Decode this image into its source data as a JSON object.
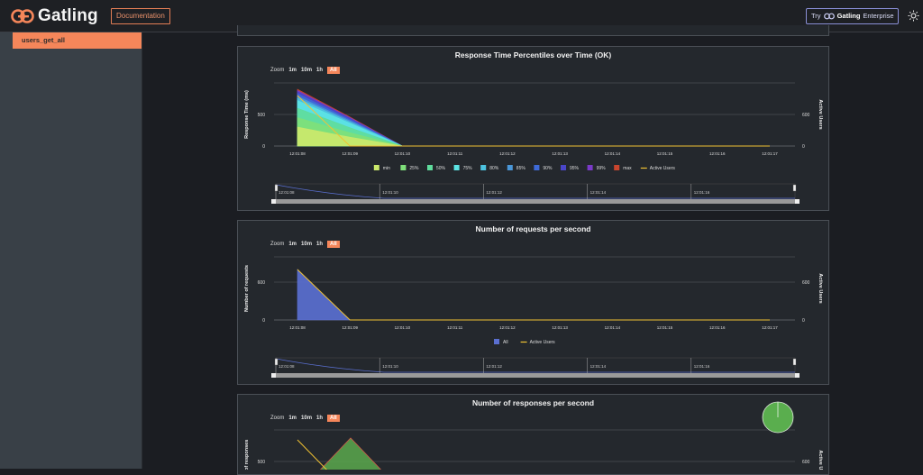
{
  "app": {
    "logo_text": "Gatling",
    "documentation_label": "Documentation",
    "enterprise_try": "Try",
    "enterprise_brand": "Gatling",
    "enterprise_label": "Enterprise"
  },
  "sidebar": {
    "items": [
      {
        "label": "users_get_all"
      }
    ]
  },
  "colors": {
    "accent": "#f5865a",
    "panel_bg": "#24282d",
    "page_bg": "#1b1d22",
    "sidebar_bg": "#394047",
    "active_users": "#f1c232"
  },
  "zoom": {
    "label": "Zoom",
    "options": [
      "1m",
      "10m",
      "1h",
      "All"
    ],
    "selected": "All"
  },
  "charts": [
    {
      "title": "Response Time Percentiles over Time (OK)",
      "ylabel": "Response Time (ms)",
      "y2label": "Active Users",
      "ytick": "500",
      "y0": "0",
      "y2tick": "600",
      "y20": "0",
      "xticks": [
        "12:01:08",
        "12:01:09",
        "12:01:10",
        "12:01:11",
        "12:01:12",
        "12:01:13",
        "12:01:14",
        "12:01:15",
        "12:01:16",
        "12:01:17"
      ],
      "nav_ticks": [
        "12:01:08",
        "12:01:10",
        "12:01:12",
        "12:01:14",
        "12:01:16"
      ],
      "legend": [
        {
          "name": "min",
          "color": "#cbe86b"
        },
        {
          "name": "25%",
          "color": "#7fe07a"
        },
        {
          "name": "50%",
          "color": "#5fdc9c"
        },
        {
          "name": "75%",
          "color": "#5ce4e4"
        },
        {
          "name": "80%",
          "color": "#4cc3e0"
        },
        {
          "name": "85%",
          "color": "#4a97d8"
        },
        {
          "name": "90%",
          "color": "#3e6ad8"
        },
        {
          "name": "95%",
          "color": "#4a46c8"
        },
        {
          "name": "99%",
          "color": "#7a3ac8"
        },
        {
          "name": "max",
          "color": "#c8452e"
        },
        {
          "name": "Active Users",
          "color": "#f1c232",
          "line": true
        }
      ]
    },
    {
      "title": "Number of requests per second",
      "ylabel": "Number of requests",
      "y2label": "Active Users",
      "ytick": "600",
      "y0": "0",
      "y2tick": "600",
      "y20": "0",
      "xticks": [
        "12:01:08",
        "12:01:09",
        "12:01:10",
        "12:01:11",
        "12:01:12",
        "12:01:13",
        "12:01:14",
        "12:01:15",
        "12:01:16",
        "12:01:17"
      ],
      "nav_ticks": [
        "12:01:08",
        "12:01:10",
        "12:01:12",
        "12:01:14",
        "12:01:16"
      ],
      "legend": [
        {
          "name": "All",
          "color": "#5a6fd0"
        },
        {
          "name": "Active Users",
          "color": "#f1c232",
          "line": true
        }
      ]
    },
    {
      "title": "Number of responses per second",
      "ylabel": "Number of responses",
      "y2label": "Active Users",
      "ytick": "500",
      "y2tick": "600"
    }
  ],
  "chart_data": [
    {
      "type": "area",
      "title": "Response Time Percentiles over Time (OK)",
      "ylabel": "Response Time (ms)",
      "y2label": "Active Users",
      "x": [
        "12:01:08",
        "12:01:09",
        "12:01:10",
        "12:01:11",
        "12:01:12",
        "12:01:13",
        "12:01:14",
        "12:01:15",
        "12:01:16",
        "12:01:17"
      ],
      "series": [
        {
          "name": "max",
          "values": [
            900,
            460,
            0,
            0,
            0,
            0,
            0,
            0,
            0,
            0
          ]
        },
        {
          "name": "99%",
          "values": [
            880,
            450,
            0,
            0,
            0,
            0,
            0,
            0,
            0,
            0
          ]
        },
        {
          "name": "95%",
          "values": [
            860,
            440,
            0,
            0,
            0,
            0,
            0,
            0,
            0,
            0
          ]
        },
        {
          "name": "90%",
          "values": [
            830,
            420,
            0,
            0,
            0,
            0,
            0,
            0,
            0,
            0
          ]
        },
        {
          "name": "85%",
          "values": [
            790,
            400,
            0,
            0,
            0,
            0,
            0,
            0,
            0,
            0
          ]
        },
        {
          "name": "80%",
          "values": [
            760,
            380,
            0,
            0,
            0,
            0,
            0,
            0,
            0,
            0
          ]
        },
        {
          "name": "75%",
          "values": [
            720,
            360,
            0,
            0,
            0,
            0,
            0,
            0,
            0,
            0
          ]
        },
        {
          "name": "50%",
          "values": [
            600,
            290,
            0,
            0,
            0,
            0,
            0,
            0,
            0,
            0
          ]
        },
        {
          "name": "25%",
          "values": [
            450,
            210,
            0,
            0,
            0,
            0,
            0,
            0,
            0,
            0
          ]
        },
        {
          "name": "min",
          "values": [
            300,
            140,
            0,
            0,
            0,
            0,
            0,
            0,
            0,
            0
          ]
        },
        {
          "name": "Active Users",
          "values": [
            800,
            0,
            0,
            0,
            0,
            0,
            0,
            0,
            0,
            0
          ]
        }
      ]
    },
    {
      "type": "area",
      "title": "Number of requests per second",
      "ylabel": "Number of requests",
      "y2label": "Active Users",
      "x": [
        "12:01:08",
        "12:01:09",
        "12:01:10",
        "12:01:11",
        "12:01:12",
        "12:01:13",
        "12:01:14",
        "12:01:15",
        "12:01:16",
        "12:01:17"
      ],
      "series": [
        {
          "name": "All",
          "values": [
            800,
            0,
            0,
            0,
            0,
            0,
            0,
            0,
            0,
            0
          ]
        },
        {
          "name": "Active Users",
          "values": [
            800,
            0,
            0,
            0,
            0,
            0,
            0,
            0,
            0,
            0
          ]
        }
      ]
    }
  ]
}
